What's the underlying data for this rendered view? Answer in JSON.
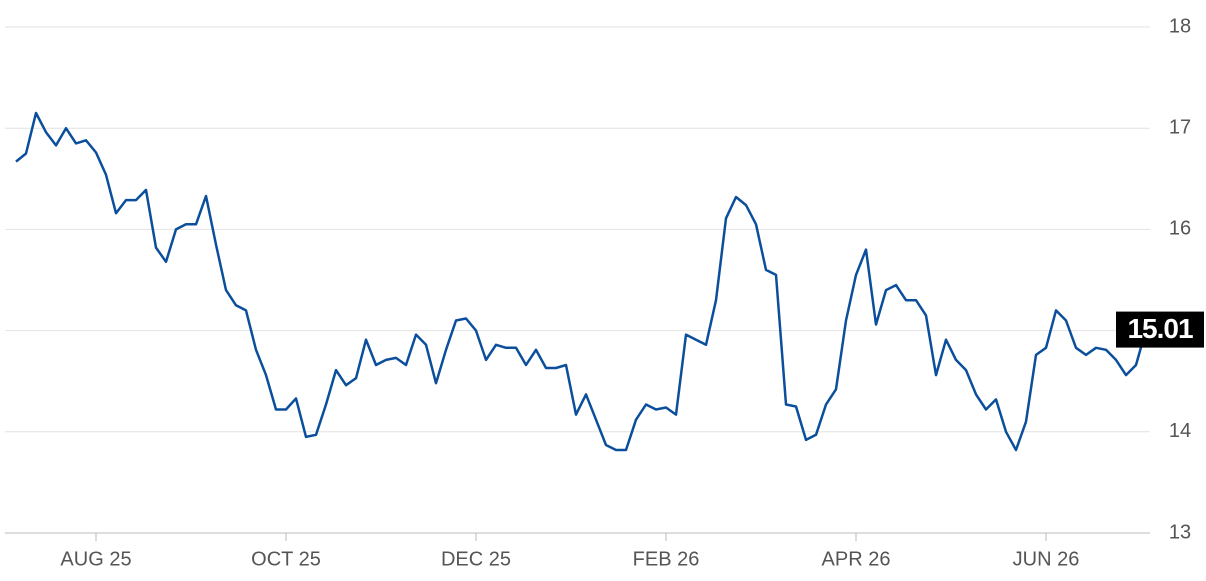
{
  "chart_data": {
    "type": "line",
    "categories": [
      null,
      null,
      null,
      null,
      null,
      null,
      null,
      null,
      "AUG 25",
      null,
      null,
      null,
      null,
      null,
      null,
      null,
      null,
      null,
      null,
      null,
      null,
      null,
      null,
      null,
      null,
      null,
      null,
      "OCT 25",
      null,
      null,
      null,
      null,
      null,
      null,
      null,
      null,
      null,
      null,
      null,
      null,
      null,
      null,
      null,
      null,
      null,
      null,
      "DEC 25",
      null,
      null,
      null,
      null,
      null,
      null,
      null,
      null,
      null,
      null,
      null,
      null,
      null,
      null,
      null,
      null,
      null,
      null,
      "FEB 26",
      null,
      null,
      null,
      null,
      null,
      null,
      null,
      null,
      null,
      null,
      null,
      null,
      null,
      null,
      null,
      null,
      null,
      null,
      "APR 26",
      null,
      null,
      null,
      null,
      null,
      null,
      null,
      null,
      null,
      null,
      null,
      null,
      null,
      null,
      null,
      null,
      null,
      null,
      "JUN 26",
      null,
      null,
      null,
      null,
      null,
      null,
      null,
      null,
      null,
      null
    ],
    "values": [
      16.67,
      16.75,
      17.15,
      16.96,
      16.83,
      17.0,
      16.85,
      16.88,
      16.76,
      16.54,
      16.16,
      16.29,
      16.29,
      16.39,
      15.82,
      15.68,
      16.0,
      16.05,
      16.05,
      16.33,
      15.85,
      15.4,
      15.25,
      15.2,
      14.81,
      14.56,
      14.22,
      14.22,
      14.33,
      13.95,
      13.97,
      14.27,
      14.61,
      14.46,
      14.53,
      14.91,
      14.66,
      14.71,
      14.73,
      14.66,
      14.96,
      14.86,
      14.48,
      14.81,
      15.1,
      15.12,
      15.0,
      14.71,
      14.86,
      14.83,
      14.83,
      14.66,
      14.81,
      14.63,
      14.63,
      14.66,
      14.17,
      14.37,
      14.12,
      13.87,
      13.82,
      13.82,
      14.12,
      14.27,
      14.22,
      14.24,
      14.17,
      14.96,
      14.91,
      14.86,
      15.3,
      16.11,
      16.32,
      16.24,
      16.05,
      15.6,
      15.55,
      14.27,
      14.25,
      13.92,
      13.97,
      14.27,
      14.42,
      15.1,
      15.55,
      15.8,
      15.06,
      15.4,
      15.45,
      15.3,
      15.3,
      15.15,
      14.56,
      14.91,
      14.71,
      14.61,
      14.37,
      14.22,
      14.32,
      14.0,
      13.82,
      14.1,
      14.76,
      14.83,
      15.2,
      15.1,
      14.83,
      14.76,
      14.83,
      14.81,
      14.71,
      14.56,
      14.66,
      15.01
    ],
    "color": "#0b4f9c",
    "ylim": [
      13,
      18
    ],
    "yticks": [
      13,
      14,
      15,
      16,
      17,
      18
    ],
    "grid": true
  }
}
